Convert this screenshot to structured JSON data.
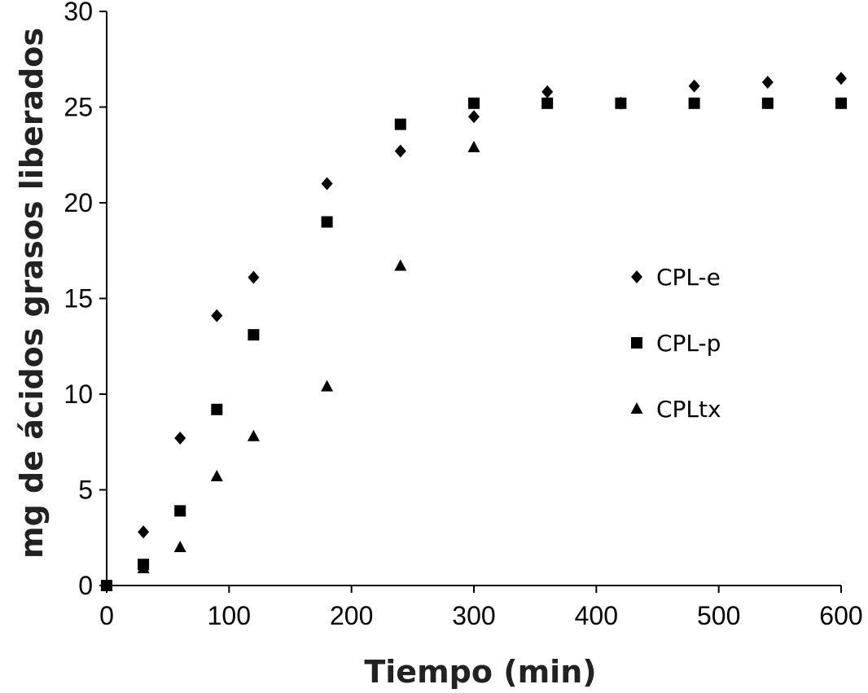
{
  "chart_data": {
    "type": "scatter",
    "xlabel": "Tiempo (min)",
    "ylabel": "mg de ácidos grasos liberados",
    "xlim": [
      0,
      600
    ],
    "ylim": [
      0,
      30
    ],
    "x_ticks": [
      "0",
      "100",
      "200",
      "300",
      "400",
      "500",
      "600"
    ],
    "y_ticks": [
      "0",
      "5",
      "10",
      "15",
      "20",
      "25",
      "30"
    ],
    "grid": false,
    "legend_position": "right",
    "trendlines": "polynomial",
    "series": [
      {
        "name": "CPL-e",
        "marker": "diamond",
        "x": [
          0,
          30,
          60,
          90,
          120,
          180,
          240,
          300,
          360,
          420,
          480,
          540,
          600
        ],
        "y": [
          0,
          2.8,
          7.7,
          14.1,
          16.1,
          21.0,
          22.7,
          24.5,
          25.8,
          25.2,
          26.1,
          26.3,
          26.5
        ]
      },
      {
        "name": "CPL-p",
        "marker": "square",
        "x": [
          0,
          30,
          60,
          90,
          120,
          180,
          240,
          300,
          360,
          420,
          480,
          540,
          600
        ],
        "y": [
          0,
          1.1,
          3.9,
          9.2,
          13.1,
          19.0,
          24.1,
          25.2,
          25.2,
          25.2,
          25.2,
          25.2,
          25.2
        ]
      },
      {
        "name": "CPLtx",
        "marker": "triangle",
        "x": [
          0,
          30,
          60,
          90,
          120,
          180,
          240,
          300
        ],
        "y": [
          0,
          0.9,
          2.0,
          5.7,
          7.8,
          10.4,
          16.7,
          22.9
        ]
      }
    ]
  }
}
